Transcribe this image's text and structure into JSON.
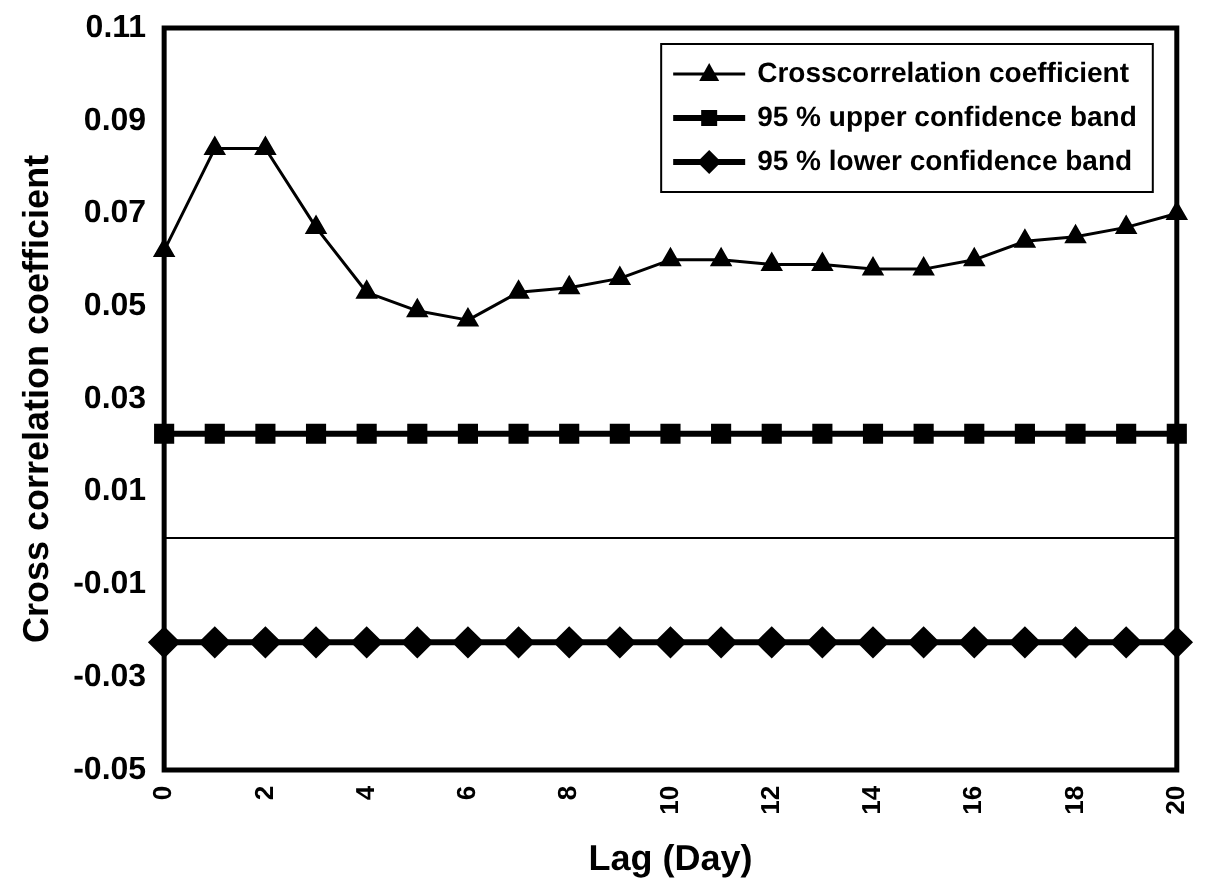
{
  "chart_data": {
    "type": "line",
    "xlabel": "Lag (Day)",
    "ylabel": "Cross correlation coefficient",
    "categories": [
      "0",
      null,
      "2",
      null,
      "4",
      null,
      "6",
      null,
      "8",
      null,
      "10",
      null,
      "12",
      null,
      "14",
      null,
      "16",
      null,
      "18",
      null,
      "20"
    ],
    "series": [
      {
        "name": "Crosscorrelation coefficient",
        "color": "#000000",
        "marker": "triangle",
        "values": [
          0.062,
          0.084,
          0.084,
          0.067,
          0.053,
          0.049,
          0.047,
          0.053,
          0.054,
          0.056,
          0.06,
          0.06,
          0.059,
          0.059,
          0.058,
          0.058,
          0.06,
          0.064,
          0.065,
          0.067,
          0.07
        ]
      },
      {
        "name": "95 % upper confidence band",
        "color": "#000000",
        "marker": "square",
        "values": [
          0.0225,
          0.0225,
          0.0225,
          0.0225,
          0.0225,
          0.0225,
          0.0225,
          0.0225,
          0.0225,
          0.0225,
          0.0225,
          0.0225,
          0.0225,
          0.0225,
          0.0225,
          0.0225,
          0.0225,
          0.0225,
          0.0225,
          0.0225,
          0.0225
        ]
      },
      {
        "name": "95 % lower confidence band",
        "color": "#000000",
        "marker": "diamond",
        "values": [
          -0.0225,
          -0.0225,
          -0.0225,
          -0.0225,
          -0.0225,
          -0.0225,
          -0.0225,
          -0.0225,
          -0.0225,
          -0.0225,
          -0.0225,
          -0.0225,
          -0.0225,
          -0.0225,
          -0.0225,
          -0.0225,
          -0.0225,
          -0.0225,
          -0.0225,
          -0.0225,
          -0.0225
        ]
      }
    ],
    "ylim": [
      -0.05,
      0.11
    ],
    "yticks": [
      -0.05,
      -0.03,
      -0.01,
      0.01,
      0.03,
      0.05,
      0.07,
      0.09,
      0.11
    ],
    "ref_lines": [
      {
        "axis": "y",
        "value": 0
      }
    ],
    "grid": false,
    "legend": "top right"
  }
}
